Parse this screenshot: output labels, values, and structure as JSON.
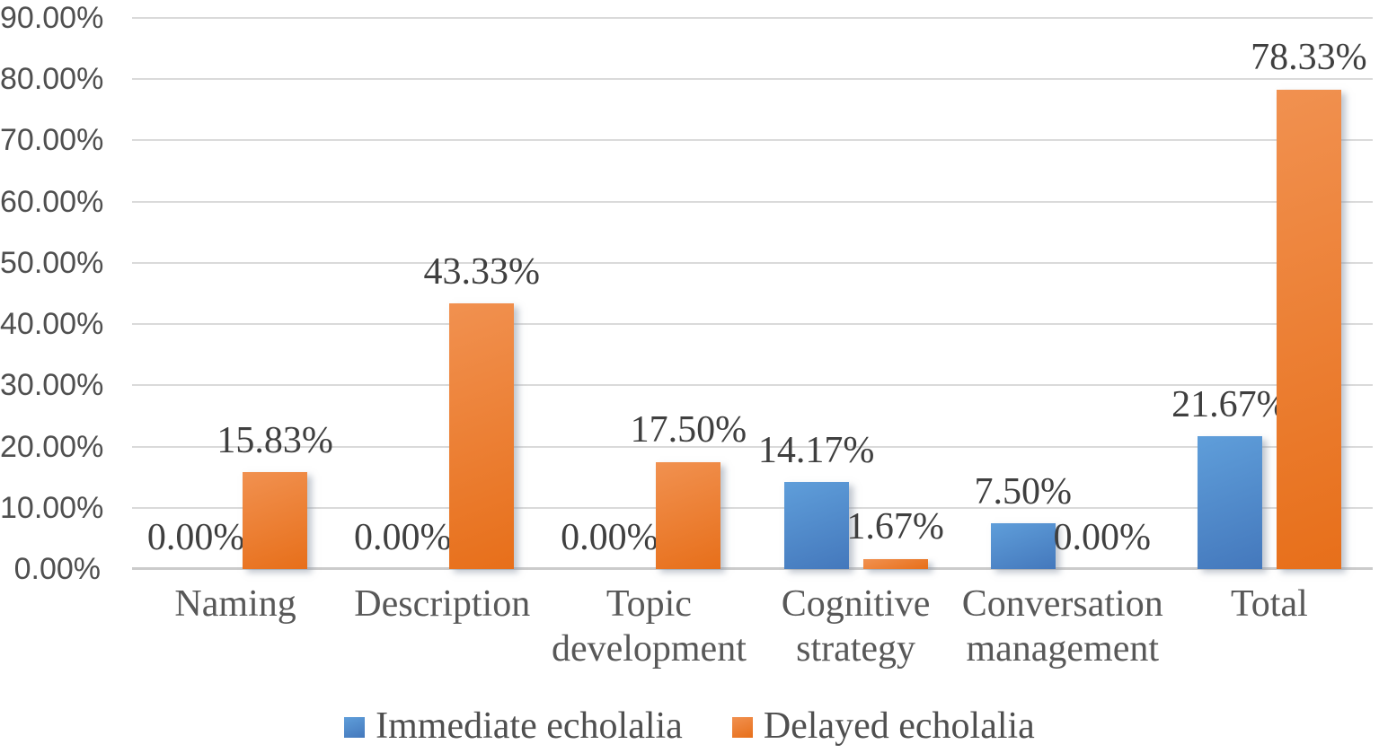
{
  "chart_data": {
    "type": "bar",
    "title": "",
    "xlabel": "",
    "ylabel": "",
    "categories": [
      "Naming",
      "Description",
      "Topic development",
      "Cognitive strategy",
      "Conversation management",
      "Total"
    ],
    "series": [
      {
        "name": "Immediate echolalia",
        "values": [
          0,
          0,
          0,
          14.17,
          7.5,
          21.67
        ],
        "data_labels": [
          "0.00%",
          "0.00%",
          "0.00%",
          "14.17%",
          "7.50%",
          "21.67%"
        ],
        "color": "#5192D0",
        "gradient_top": "#5F9EDA",
        "gradient_bottom": "#4478BC"
      },
      {
        "name": "Delayed echolalia",
        "values": [
          15.83,
          43.33,
          17.5,
          1.67,
          0,
          78.33
        ],
        "data_labels": [
          "15.83%",
          "43.33%",
          "17.50%",
          "1.67%",
          "0.00%",
          "78.33%"
        ],
        "color": "#ED7428",
        "gradient_top": "#F19150",
        "gradient_bottom": "#E76F1A"
      }
    ],
    "y_axis": {
      "min": 0,
      "max": 90,
      "step": 10,
      "tick_labels": [
        "0.00%",
        "10.00%",
        "20.00%",
        "30.00%",
        "40.00%",
        "50.00%",
        "60.00%",
        "70.00%",
        "80.00%",
        "90.00%"
      ]
    },
    "grid": true,
    "legend_position": "bottom",
    "colors": {
      "grid_line": "#DADADA",
      "axis_line": "#CBCBCB",
      "data_label_text": "#3F3F3F",
      "category_text": "#585858",
      "tick_text": "#4F4F4F",
      "legend_text": "#4F4F4F",
      "background": "#FFFFFF"
    }
  }
}
